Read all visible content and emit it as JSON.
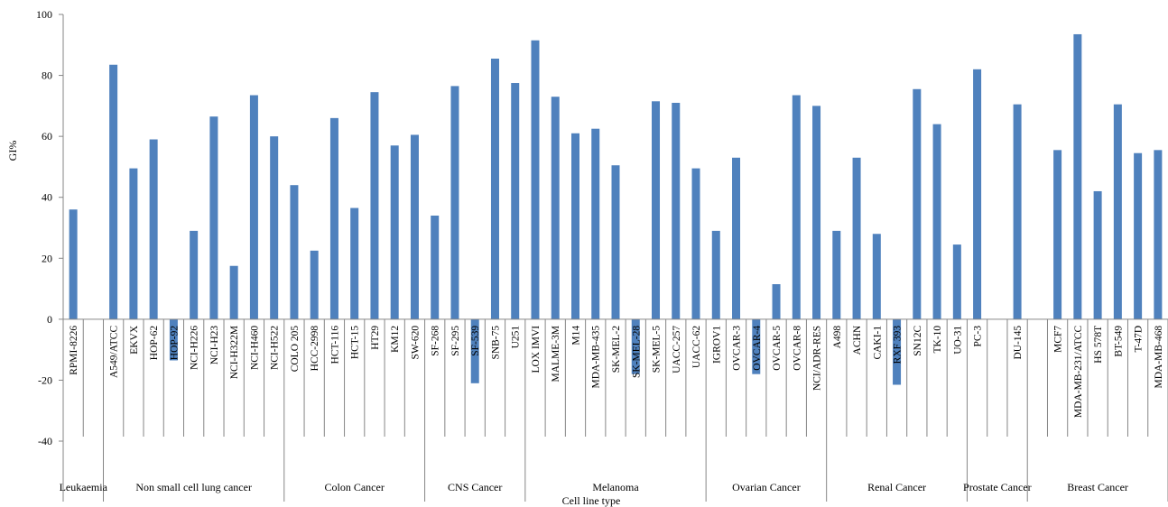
{
  "chart_data": {
    "type": "bar",
    "ylabel": "GI%",
    "xlabel": "Cell line type",
    "ylim": [
      -40,
      100
    ],
    "yticks": [
      100,
      80,
      60,
      40,
      20,
      0,
      -20,
      -40
    ],
    "bar_color": "#4F81BD",
    "grid": false,
    "legend": "none",
    "categories": [
      "RPMI-8226",
      "",
      "A549/ATCC",
      "EKVX",
      "HOP-62",
      "HOP-92",
      "NCI-H226",
      "NCI-H23",
      "NCI-H322M",
      "NCI-H460",
      "NCI-H522",
      "COLO 205",
      "HCC-2998",
      "HCT-116",
      "HCT-15",
      "HT29",
      "KM12",
      "SW-620",
      "SF-268",
      "SF-295",
      "SF-539",
      "SNB-75",
      "U251",
      "LOX IMVI",
      "MALME-3M",
      "M14",
      "MDA-MB-435",
      "SK-MEL-2",
      "SK-MEL-28",
      "SK-MEL-5",
      "UACC-257",
      "UACC-62",
      "IGROV1",
      "OVCAR-3",
      "OVCAR-4",
      "OVCAR-5",
      "OVCAR-8",
      "NCI/ADR-RES",
      "A498",
      "ACHN",
      "CAKI-1",
      "RXF 393",
      "SN12C",
      "TK-10",
      "UO-31",
      "PC-3",
      "",
      "DU-145",
      "",
      "MCF7",
      "MDA-MB-231/ATCC",
      "HS 578T",
      "BT-549",
      "T-47D",
      "MDA-MB-468"
    ],
    "values": [
      36,
      null,
      83.5,
      49.5,
      59,
      -13.5,
      29,
      66.5,
      17.5,
      73.5,
      60,
      44,
      22.5,
      66,
      36.5,
      74.5,
      57,
      60.5,
      34,
      76.5,
      -21,
      85.5,
      77.5,
      91.5,
      73,
      61,
      62.5,
      50.5,
      -18,
      71.5,
      71,
      49.5,
      29,
      53,
      -18,
      11.5,
      73.5,
      70,
      29,
      53,
      28,
      -21.5,
      75.5,
      64,
      24.5,
      82,
      null,
      70.5,
      null,
      55.5,
      93.5,
      42,
      70.5,
      54.5,
      55.5
    ],
    "groups": [
      {
        "label": "Leukaemia",
        "start": 0,
        "end": 1
      },
      {
        "label": "Non small cell lung cancer",
        "start": 2,
        "end": 10
      },
      {
        "label": "Colon Cancer",
        "start": 11,
        "end": 17
      },
      {
        "label": "CNS Cancer",
        "start": 18,
        "end": 22
      },
      {
        "label": "Melanoma",
        "start": 23,
        "end": 31
      },
      {
        "label": "Ovarian Cancer",
        "start": 32,
        "end": 37
      },
      {
        "label": "Renal Cancer",
        "start": 38,
        "end": 44
      },
      {
        "label": "Prostate Cancer",
        "start": 45,
        "end": 47
      },
      {
        "label": "Breast Cancer",
        "start": 48,
        "end": 54
      }
    ]
  }
}
